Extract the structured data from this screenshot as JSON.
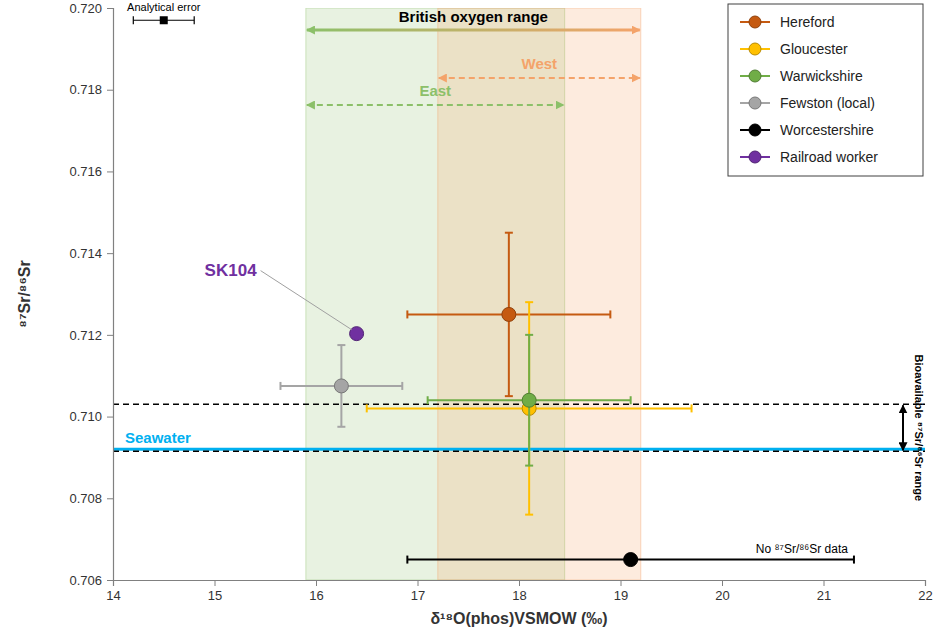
{
  "chart_data": {
    "type": "scatter",
    "x_label": "δ¹⁸O(phos)VSMOW (‰)",
    "y_label": "⁸⁷Sr/⁸⁶Sr",
    "xlim": [
      14,
      22
    ],
    "xticks": [
      14,
      15,
      16,
      17,
      18,
      19,
      20,
      21,
      22
    ],
    "ylim": [
      0.706,
      0.72
    ],
    "yticks": [
      0.706,
      0.708,
      {
        "value": 0.71,
        "label": "0.710"
      },
      0.712,
      0.714,
      0.716,
      0.718,
      {
        "value": 0.72,
        "label": "0.720"
      }
    ],
    "grid": false,
    "legend": "upper right",
    "series": [
      {
        "name": "Hereford",
        "color": "#c55a11",
        "marker": "circle",
        "x": [
          17.9
        ],
        "values": [
          0.7125
        ],
        "x_error": [
          1.0
        ],
        "y_error": [
          0.002
        ]
      },
      {
        "name": "Gloucester",
        "color": "#ffc000",
        "marker": "circle",
        "x": [
          18.1
        ],
        "values": [
          0.7102
        ],
        "x_error": [
          1.6
        ],
        "y_error": [
          0.0026
        ]
      },
      {
        "name": "Warwickshire",
        "color": "#70ad47",
        "marker": "circle",
        "x": [
          18.1
        ],
        "values": [
          0.7104
        ],
        "x_error": [
          1.0
        ],
        "y_error": [
          0.0016
        ]
      },
      {
        "name": "Fewston (local)",
        "color": "#a5a5a5",
        "marker": "circle",
        "x": [
          16.25
        ],
        "values": [
          0.71075
        ],
        "x_error": [
          0.6
        ],
        "y_error": [
          0.001
        ]
      },
      {
        "name": "Worcestershire",
        "color": "#000000",
        "marker": "circle",
        "x": [
          19.1
        ],
        "values": [
          0.7065
        ],
        "x_error": [
          2.2
        ],
        "y_error": [
          null
        ],
        "note": "No ⁸⁷Sr/⁸⁶Sr data"
      },
      {
        "name": "Railroad worker",
        "color": "#7030a0",
        "marker": "circle",
        "x": [
          16.4
        ],
        "values": [
          0.71203
        ],
        "x_error": [
          null
        ],
        "y_error": [
          null
        ],
        "annotation": "SK104"
      }
    ],
    "oxygen_ranges": [
      {
        "label": "British oxygen range",
        "range": [
          15.9,
          19.2
        ]
      },
      {
        "label": "East",
        "range": [
          15.9,
          18.45
        ],
        "color": "#8cc069"
      },
      {
        "label": "West",
        "range": [
          17.2,
          19.2
        ],
        "color": "#f4a36a"
      }
    ],
    "bioavailable_range": {
      "label": "Bioavailable ⁸⁷Sr/⁸⁶Sr range",
      "range": [
        0.70915,
        0.7103
      ]
    },
    "seawater": {
      "label": "Seawater",
      "value": 0.7092,
      "color": "#00b0f0"
    },
    "analytical_error": {
      "label": "Analytical error",
      "x": 14.5,
      "y": 0.7197,
      "x_error": 0.3
    }
  }
}
